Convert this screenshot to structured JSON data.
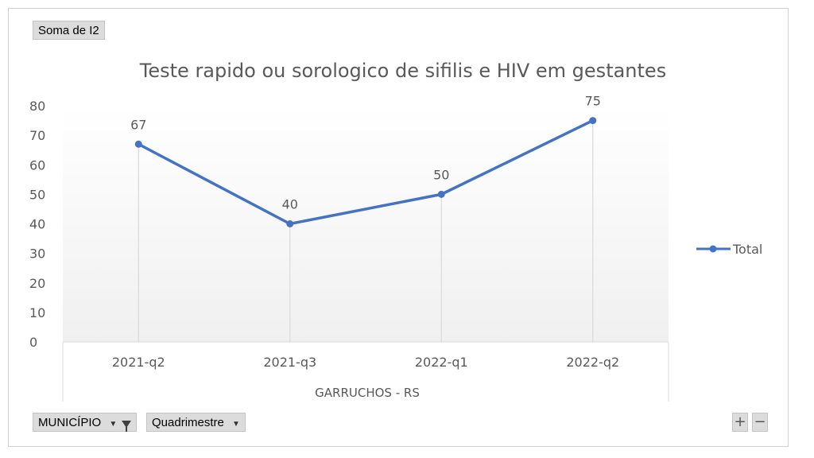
{
  "field_buttons": {
    "values_field": "Soma de I2",
    "municipio": "MUNICÍPIO",
    "quadrimestre": "Quadrimestre"
  },
  "zoom": {
    "plus": "+",
    "minus": "−"
  },
  "colors": {
    "line": "#4472c4",
    "grid": "#d9d9d9",
    "text": "#595959"
  },
  "chart_data": {
    "type": "line",
    "title": "Teste rapido ou sorologico de sifilis e HIV em gestantes",
    "categories": [
      "2021-q2",
      "2021-q3",
      "2022-q1",
      "2022-q2"
    ],
    "group_label": "GARRUCHOS - RS",
    "series": [
      {
        "name": "Total",
        "values": [
          67,
          40,
          50,
          75
        ]
      }
    ],
    "data_labels": [
      "67",
      "40",
      "50",
      "75"
    ],
    "y_ticks": [
      "0",
      "10",
      "20",
      "30",
      "40",
      "50",
      "60",
      "70",
      "80"
    ],
    "ylim": [
      0,
      80
    ],
    "grid": "vertical drop lines",
    "legend_position": "right"
  }
}
